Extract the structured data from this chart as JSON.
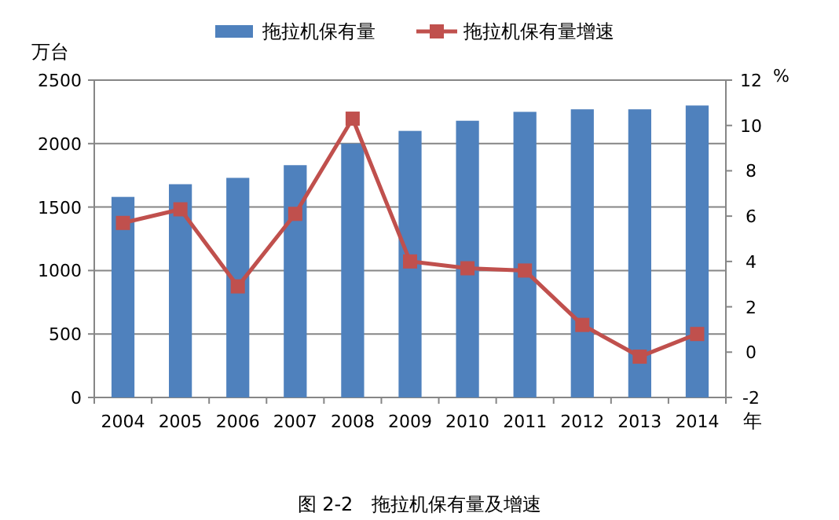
{
  "chart_data": {
    "type": "bar",
    "categories": [
      "2004",
      "2005",
      "2006",
      "2007",
      "2008",
      "2009",
      "2010",
      "2011",
      "2012",
      "2013",
      "2014"
    ],
    "series": [
      {
        "name": "拖拉机保有量",
        "color": "#4f81bd",
        "values": [
          1580,
          1680,
          1730,
          1830,
          2000,
          2100,
          2180,
          2250,
          2270,
          2270,
          2300
        ]
      },
      {
        "name": "拖拉机保有量增速",
        "type": "line",
        "axis": "y2",
        "color": "#c0504d",
        "marker": "square",
        "values": [
          5.7,
          6.3,
          2.9,
          6.1,
          10.3,
          4.0,
          3.7,
          3.6,
          1.2,
          -0.2,
          0.8
        ]
      }
    ],
    "ylim": [
      0,
      2500
    ],
    "yticks": [
      0,
      500,
      1000,
      1500,
      2000,
      2500
    ],
    "y2lim": [
      -2,
      12
    ],
    "y2ticks": [
      -2,
      0,
      2,
      4,
      6,
      8,
      10,
      12
    ],
    "ylabel": "万台",
    "y2label": "%",
    "xlabel": "年",
    "grid": "y",
    "legend": "top",
    "annotations": [
      "图 2-2　拖拉机保有量及增速"
    ]
  }
}
